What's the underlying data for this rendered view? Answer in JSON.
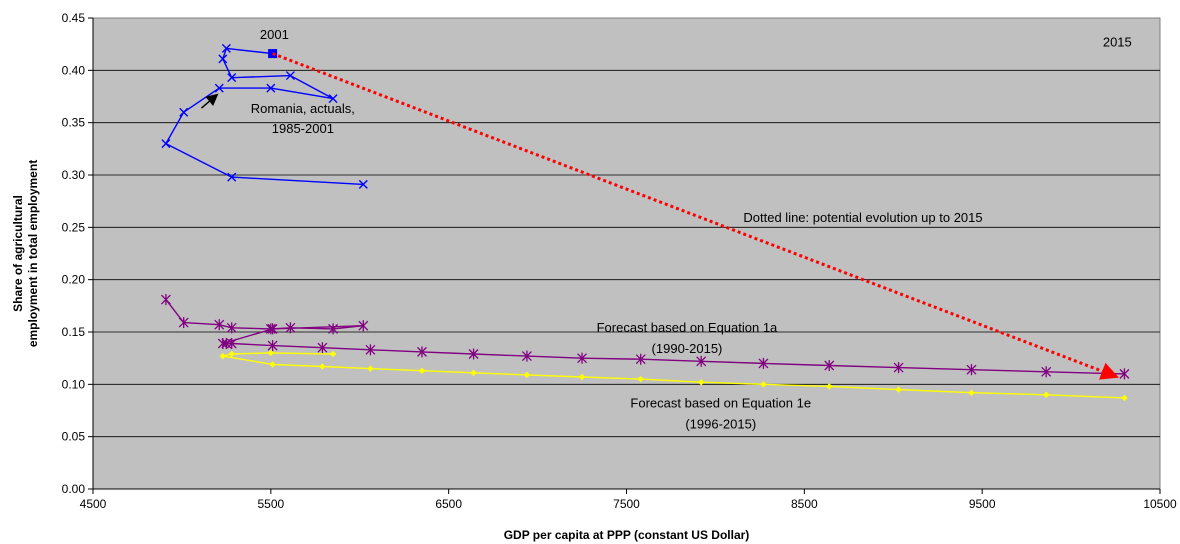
{
  "chart_data": {
    "type": "line",
    "xlabel": "GDP per capita at PPP (constant US Dollar)",
    "ylabel_lines": [
      "Share of agricultural",
      "employment in total employment"
    ],
    "xlim": [
      4500,
      10500
    ],
    "ylim": [
      0,
      0.45
    ],
    "x_ticks": [
      4500,
      5500,
      6500,
      7500,
      8500,
      9500,
      10500
    ],
    "x_tick_labels": [
      "4500",
      "5500",
      "6500",
      "7500",
      "8500",
      "9500",
      "10500"
    ],
    "y_ticks": [
      0,
      0.05,
      0.1,
      0.15,
      0.2,
      0.25,
      0.3,
      0.35,
      0.4,
      0.45
    ],
    "y_tick_labels": [
      "0.00",
      "0.05",
      "0.10",
      "0.15",
      "0.20",
      "0.25",
      "0.30",
      "0.35",
      "0.40",
      "0.45"
    ],
    "grid": "horizontal",
    "plot_background": "#c0c0c0",
    "series": [
      {
        "key": "actuals",
        "color": "#0000ff",
        "marker": "x",
        "points": [
          [
            6020,
            0.291
          ],
          [
            5280,
            0.298
          ],
          [
            4910,
            0.33
          ],
          [
            5010,
            0.36
          ],
          [
            5210,
            0.383
          ],
          [
            5500,
            0.383
          ],
          [
            5850,
            0.373
          ],
          [
            5610,
            0.395
          ],
          [
            5280,
            0.393
          ],
          [
            5230,
            0.411
          ],
          [
            5250,
            0.421
          ],
          [
            5510,
            0.416
          ]
        ]
      },
      {
        "key": "eq1a",
        "color": "#800080",
        "marker": "asterisk",
        "points": [
          [
            4910,
            0.181
          ],
          [
            5010,
            0.159
          ],
          [
            5210,
            0.157
          ],
          [
            5280,
            0.154
          ],
          [
            5500,
            0.153
          ],
          [
            5610,
            0.154
          ],
          [
            5850,
            0.153
          ],
          [
            6020,
            0.156
          ],
          [
            5510,
            0.153
          ],
          [
            5230,
            0.139
          ],
          [
            5250,
            0.139
          ],
          [
            5280,
            0.139
          ],
          [
            5510,
            0.137
          ],
          [
            5790,
            0.135
          ],
          [
            6060,
            0.133
          ],
          [
            6350,
            0.131
          ],
          [
            6640,
            0.129
          ],
          [
            6940,
            0.127
          ],
          [
            7250,
            0.125
          ],
          [
            7580,
            0.124
          ],
          [
            7920,
            0.122
          ],
          [
            8270,
            0.12
          ],
          [
            8640,
            0.118
          ],
          [
            9030,
            0.116
          ],
          [
            9440,
            0.114
          ],
          [
            9860,
            0.112
          ],
          [
            10300,
            0.11
          ]
        ]
      },
      {
        "key": "eq1e",
        "color": "#ffff00",
        "marker": "diamond",
        "points": [
          [
            5850,
            0.129
          ],
          [
            5500,
            0.13
          ],
          [
            5280,
            0.129
          ],
          [
            5230,
            0.127
          ],
          [
            5510,
            0.119
          ],
          [
            5790,
            0.117
          ],
          [
            6060,
            0.115
          ],
          [
            6350,
            0.113
          ],
          [
            6640,
            0.111
          ],
          [
            6940,
            0.109
          ],
          [
            7250,
            0.107
          ],
          [
            7580,
            0.105
          ],
          [
            7920,
            0.102
          ],
          [
            8270,
            0.1
          ],
          [
            8640,
            0.098
          ],
          [
            9030,
            0.095
          ],
          [
            9440,
            0.092
          ],
          [
            9860,
            0.09
          ],
          [
            10300,
            0.087
          ]
        ]
      }
    ],
    "marker_2001": {
      "x": 5510,
      "y": 0.416,
      "color": "#0000ff"
    },
    "black_arrow": {
      "from": [
        5110,
        0.364
      ],
      "to": [
        5200,
        0.377
      ],
      "color": "#000000"
    },
    "potential_evolution": {
      "from": [
        5510,
        0.416
      ],
      "to": [
        10260,
        0.107
      ],
      "color": "#ff0000"
    },
    "annotations": [
      {
        "key": "year-2001",
        "text": "2001",
        "x": 5520,
        "y": 0.43,
        "anchor": "middle"
      },
      {
        "key": "year-2015",
        "text": "2015",
        "x": 10260,
        "y": 0.423,
        "anchor": "middle"
      },
      {
        "key": "romania-line1",
        "text": "Romania, actuals,",
        "x": 5680,
        "y": 0.359,
        "anchor": "middle"
      },
      {
        "key": "romania-line2",
        "text": "1985-2001",
        "x": 5680,
        "y": 0.34,
        "anchor": "middle"
      },
      {
        "key": "dotted-line",
        "text": "Dotted line: potential evolution up to 2015",
        "x": 8830,
        "y": 0.255,
        "anchor": "middle"
      },
      {
        "key": "eq1a-line1",
        "text": "Forecast based on Equation 1a",
        "x": 7840,
        "y": 0.15,
        "anchor": "middle"
      },
      {
        "key": "eq1a-line2",
        "text": "(1990-2015)",
        "x": 7840,
        "y": 0.13,
        "anchor": "middle"
      },
      {
        "key": "eq1e-line1",
        "text": "Forecast based on Equation 1e",
        "x": 8030,
        "y": 0.078,
        "anchor": "middle"
      },
      {
        "key": "eq1e-line2",
        "text": "(1996-2015)",
        "x": 8030,
        "y": 0.058,
        "anchor": "middle"
      }
    ]
  }
}
